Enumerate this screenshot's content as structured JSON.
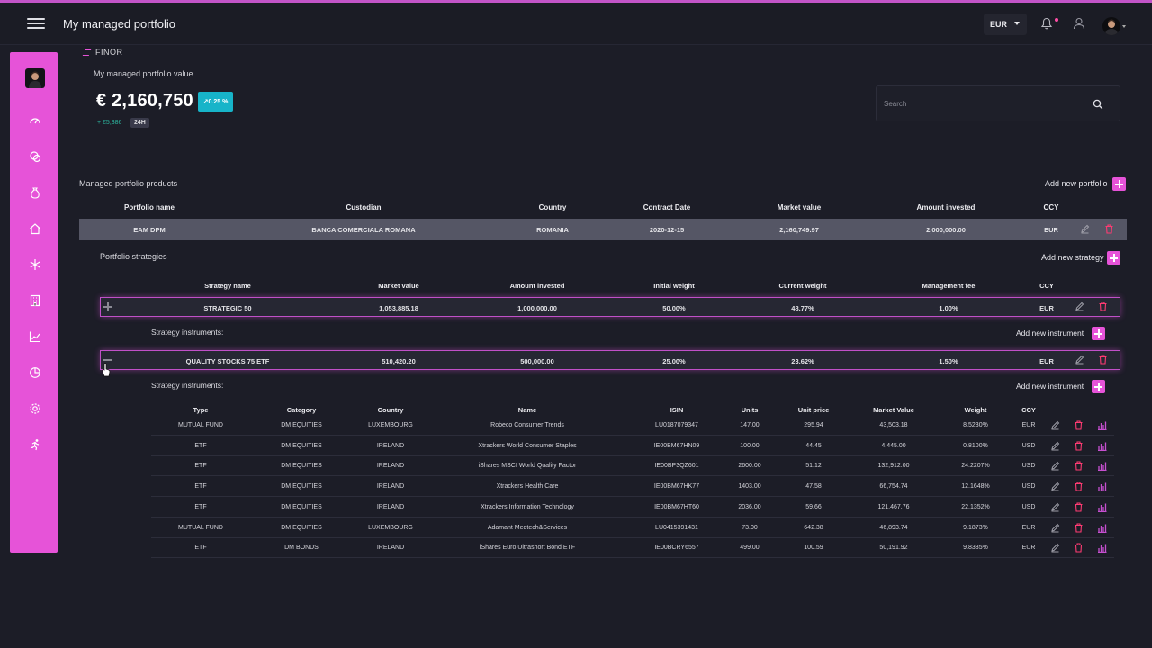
{
  "header": {
    "title": "My managed portfolio",
    "currency": "EUR"
  },
  "brand": {
    "name": "FINOR"
  },
  "summary": {
    "label": "My managed portfolio value",
    "value": "€ 2,160,750",
    "change_pct": "↗0.25 %",
    "delta": "+ €5,386",
    "period": "24H"
  },
  "search": {
    "placeholder": "Search"
  },
  "colors": {
    "accent": "#e653d8",
    "teal": "#17b4c9",
    "background": "#1c1d27"
  },
  "icons": {
    "sidebar": [
      "dashboard-icon",
      "coins-icon",
      "money-bag-icon",
      "home-icon",
      "snowflake-icon",
      "building-icon",
      "line-chart-icon",
      "pie-chart-icon",
      "settings-icon",
      "runner-icon"
    ]
  },
  "products": {
    "title": "Managed portfolio products",
    "add_label": "Add new portfolio",
    "headers": [
      "Portfolio name",
      "Custodian",
      "Country",
      "Contract Date",
      "Market value",
      "Amount invested",
      "CCY"
    ],
    "rows": [
      [
        "EAM DPM",
        "BANCA COMERCIALA ROMANA",
        "ROMANIA",
        "2020-12-15",
        "2,160,749.97",
        "2,000,000.00",
        "EUR"
      ]
    ]
  },
  "strategies": {
    "title": "Portfolio strategies",
    "add_label": "Add new strategy",
    "headers": [
      "Strategy name",
      "Market value",
      "Amount invested",
      "Initial weight",
      "Current weight",
      "Management fee",
      "CCY"
    ],
    "rows": [
      [
        "STRATEGIC 50",
        "1,053,885.18",
        "1,000,000.00",
        "50.00%",
        "48.77%",
        "1.00%",
        "EUR"
      ],
      [
        "QUALITY STOCKS 75 ETF",
        "510,420.20",
        "500,000.00",
        "25.00%",
        "23.62%",
        "1.50%",
        "EUR"
      ]
    ],
    "instruments_label": "Strategy instruments:",
    "add_instrument_label": "Add new instrument"
  },
  "instruments": {
    "headers": [
      "Type",
      "Category",
      "Country",
      "Name",
      "ISIN",
      "Units",
      "Unit price",
      "Market Value",
      "Weight",
      "CCY"
    ],
    "rows": [
      [
        "MUTUAL FUND",
        "DM EQUITIES",
        "LUXEMBOURG",
        "Robeco Consumer Trends",
        "LU0187079347",
        "147.00",
        "295.94",
        "43,503.18",
        "8.5230%",
        "EUR"
      ],
      [
        "ETF",
        "DM EQUITIES",
        "IRELAND",
        "Xtrackers World Consumer Staples",
        "IE00BM67HN09",
        "100.00",
        "44.45",
        "4,445.00",
        "0.8100%",
        "USD"
      ],
      [
        "ETF",
        "DM EQUITIES",
        "IRELAND",
        "iShares MSCI World Quality Factor",
        "IE00BP3QZ601",
        "2600.00",
        "51.12",
        "132,912.00",
        "24.2207%",
        "USD"
      ],
      [
        "ETF",
        "DM EQUITIES",
        "IRELAND",
        "Xtrackers Health Care",
        "IE00BM67HK77",
        "1403.00",
        "47.58",
        "66,754.74",
        "12.1648%",
        "USD"
      ],
      [
        "ETF",
        "DM EQUITIES",
        "IRELAND",
        "Xtrackers Information Technology",
        "IE00BM67HT60",
        "2036.00",
        "59.66",
        "121,467.76",
        "22.1352%",
        "USD"
      ],
      [
        "MUTUAL FUND",
        "DM EQUITIES",
        "LUXEMBOURG",
        "Adamant Medtech&Services",
        "LU0415391431",
        "73.00",
        "642.38",
        "46,893.74",
        "9.1873%",
        "EUR"
      ],
      [
        "ETF",
        "DM BONDS",
        "IRELAND",
        "iShares Euro Ultrashort Bond ETF",
        "IE00BCRY6557",
        "499.00",
        "100.59",
        "50,191.92",
        "9.8335%",
        "EUR"
      ]
    ]
  }
}
